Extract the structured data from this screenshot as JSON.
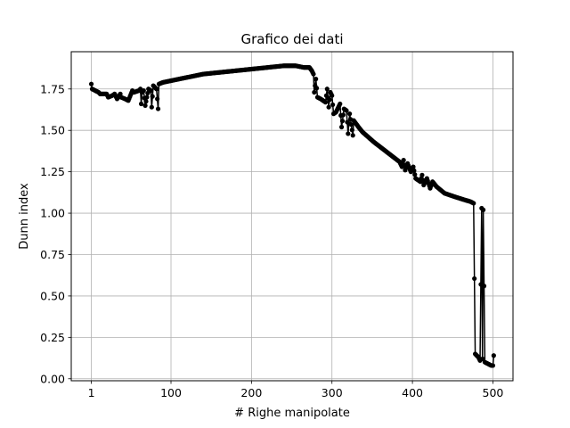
{
  "chart_data": {
    "type": "line",
    "title": "Grafico dei dati",
    "xlabel": "# Righe manipolate",
    "ylabel": "Dunn index",
    "xlim": [
      -23.95,
      524.95
    ],
    "ylim": [
      -0.012,
      1.975
    ],
    "xticks": [
      1,
      100,
      200,
      300,
      400,
      500
    ],
    "yticks": [
      0.0,
      0.25,
      0.5,
      0.75,
      1.0,
      1.25,
      1.5,
      1.75
    ],
    "xtick_labels": [
      "1",
      "100",
      "200",
      "300",
      "400",
      "500"
    ],
    "ytick_labels": [
      "0.00",
      "0.25",
      "0.50",
      "0.75",
      "1.00",
      "1.25",
      "1.50",
      "1.75"
    ],
    "grid": true,
    "series": [
      {
        "color": "#000000",
        "marker": "circle",
        "points": [
          [
            1,
            1.78
          ],
          [
            2,
            1.75
          ],
          [
            6,
            1.74
          ],
          [
            10,
            1.73
          ],
          [
            12,
            1.72
          ],
          [
            20,
            1.72
          ],
          [
            22,
            1.7
          ],
          [
            27,
            1.71
          ],
          [
            30,
            1.72
          ],
          [
            33,
            1.69
          ],
          [
            37,
            1.72
          ],
          [
            38,
            1.7
          ],
          [
            43,
            1.69
          ],
          [
            47,
            1.68
          ],
          [
            52,
            1.74
          ],
          [
            54,
            1.73
          ],
          [
            60,
            1.74
          ],
          [
            62,
            1.75
          ],
          [
            63,
            1.66
          ],
          [
            64,
            1.73
          ],
          [
            66,
            1.74
          ],
          [
            68,
            1.65
          ],
          [
            72,
            1.75
          ],
          [
            75,
            1.74
          ],
          [
            76,
            1.64
          ],
          [
            78,
            1.77
          ],
          [
            82,
            1.75
          ],
          [
            84,
            1.63
          ],
          [
            85,
            1.78
          ],
          [
            90,
            1.79
          ],
          [
            100,
            1.8
          ],
          [
            120,
            1.82
          ],
          [
            140,
            1.84
          ],
          [
            160,
            1.85
          ],
          [
            180,
            1.86
          ],
          [
            200,
            1.87
          ],
          [
            220,
            1.88
          ],
          [
            240,
            1.89
          ],
          [
            255,
            1.89
          ],
          [
            265,
            1.88
          ],
          [
            272,
            1.88
          ],
          [
            275,
            1.86
          ],
          [
            277,
            1.84
          ],
          [
            278,
            1.73
          ],
          [
            280,
            1.81
          ],
          [
            282,
            1.7
          ],
          [
            286,
            1.69
          ],
          [
            292,
            1.67
          ],
          [
            294,
            1.75
          ],
          [
            296,
            1.64
          ],
          [
            298,
            1.73
          ],
          [
            300,
            1.71
          ],
          [
            302,
            1.6
          ],
          [
            305,
            1.61
          ],
          [
            310,
            1.66
          ],
          [
            312,
            1.52
          ],
          [
            315,
            1.63
          ],
          [
            318,
            1.62
          ],
          [
            320,
            1.48
          ],
          [
            322,
            1.6
          ],
          [
            326,
            1.47
          ],
          [
            327,
            1.56
          ],
          [
            333,
            1.52
          ],
          [
            338,
            1.49
          ],
          [
            345,
            1.46
          ],
          [
            352,
            1.43
          ],
          [
            360,
            1.4
          ],
          [
            368,
            1.37
          ],
          [
            376,
            1.34
          ],
          [
            384,
            1.31
          ],
          [
            387,
            1.28
          ],
          [
            389,
            1.32
          ],
          [
            391,
            1.26
          ],
          [
            394,
            1.3
          ],
          [
            398,
            1.25
          ],
          [
            401,
            1.28
          ],
          [
            404,
            1.21
          ],
          [
            410,
            1.19
          ],
          [
            412,
            1.23
          ],
          [
            414,
            1.17
          ],
          [
            418,
            1.21
          ],
          [
            422,
            1.15
          ],
          [
            425,
            1.19
          ],
          [
            430,
            1.16
          ],
          [
            440,
            1.12
          ],
          [
            452,
            1.1
          ],
          [
            465,
            1.08
          ],
          [
            472,
            1.07
          ],
          [
            476,
            1.06
          ],
          [
            478,
            0.15
          ],
          [
            482,
            0.13
          ],
          [
            484,
            0.11
          ],
          [
            486,
            1.03
          ],
          [
            487,
            0.12
          ],
          [
            488,
            1.02
          ],
          [
            490,
            0.1
          ],
          [
            494,
            0.09
          ],
          [
            498,
            0.08
          ],
          [
            500,
            0.08
          ],
          [
            501,
            0.14
          ]
        ]
      }
    ]
  }
}
